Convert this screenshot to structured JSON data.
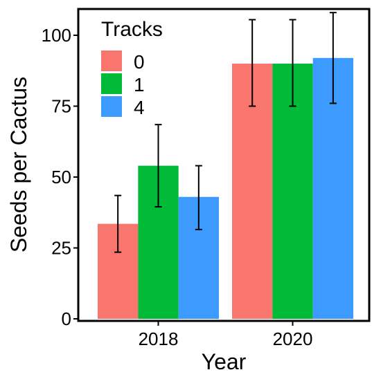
{
  "chart_data": {
    "type": "bar",
    "xlabel": "Year",
    "ylabel": "Seeds per Cactus",
    "ylim": [
      0,
      108
    ],
    "yticks": [
      0,
      25,
      50,
      75,
      100
    ],
    "grid": false,
    "legend": {
      "title": "Tracks",
      "placement": "top-left"
    },
    "categories": [
      "2018",
      "2020"
    ],
    "series": [
      {
        "name": "0",
        "color": "#F8766D",
        "values": [
          33.5,
          90.0
        ],
        "err_low": [
          23.5,
          75.0
        ],
        "err_high": [
          43.5,
          105.5
        ]
      },
      {
        "name": "1",
        "color": "#00BA38",
        "values": [
          54.0,
          90.0
        ],
        "err_low": [
          39.5,
          75.0
        ],
        "err_high": [
          68.5,
          105.5
        ]
      },
      {
        "name": "4",
        "color": "#3D9BFF",
        "values": [
          43.0,
          92.0
        ],
        "err_low": [
          31.5,
          76.0
        ],
        "err_high": [
          54.0,
          108.0
        ]
      }
    ]
  }
}
